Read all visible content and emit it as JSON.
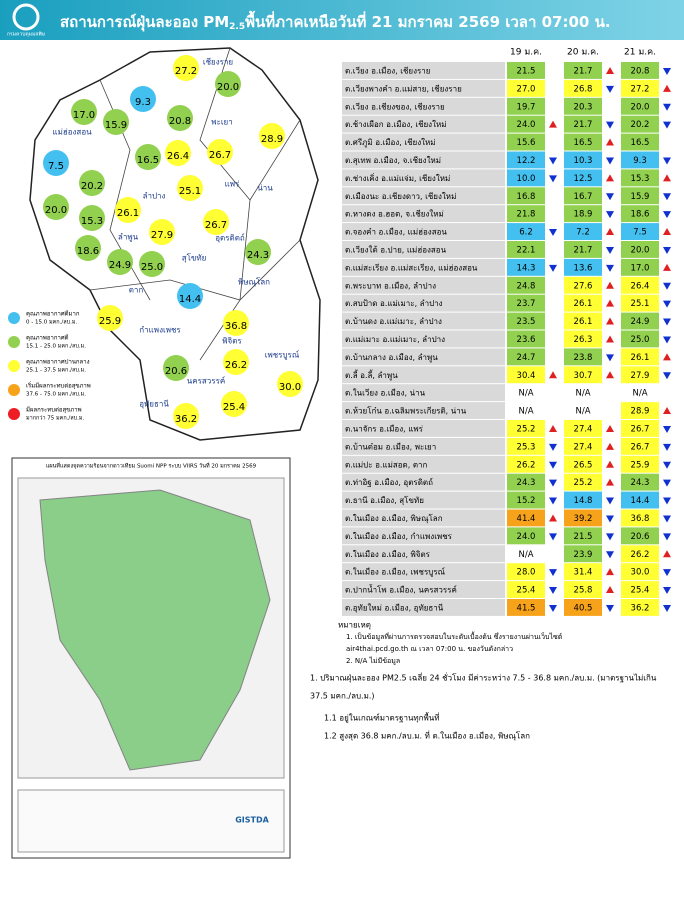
{
  "header": {
    "org": "กรมควบคุมมลพิษ",
    "title_a": "สถานการณ์ฝุ่นละออง PM",
    "title_sub": "2.5",
    "title_b": "พื้นที่ภาคเหนือวันที่ 21 มกราคม 2569 เวลา 07:00 น."
  },
  "legend": [
    {
      "label": "คุณภาพอากาศดีมาก",
      "range_label": "0 - 15.0 มคก./ลบ.ม.",
      "range": [
        0,
        15
      ],
      "color": "#43c0f0"
    },
    {
      "label": "คุณภาพอากาศดี",
      "range_label": "15.1 - 25.0 มคก./ลบ.ม.",
      "range": [
        15.1,
        25
      ],
      "color": "#92d050"
    },
    {
      "label": "คุณภาพอากาศปานกลาง",
      "range_label": "25.1 - 37.5 มคก./ลบ.ม.",
      "range": [
        25.1,
        37.5
      ],
      "color": "#ffff33"
    },
    {
      "label": "เริ่มมีผลกระทบต่อสุขภาพ",
      "range_label": "37.6 - 75.0 มคก./ลบ.ม.",
      "range": [
        37.6,
        75
      ],
      "color": "#f7a21b"
    },
    {
      "label": "มีผลกระทบต่อสุขภาพ",
      "range_label": "มากกว่า 75 มคก./ลบ.ม.",
      "range": [
        75,
        null
      ],
      "color": "#ee1c25"
    }
  ],
  "table": {
    "dates": [
      "19 ม.ค.",
      "20 ม.ค.",
      "21 ม.ค."
    ],
    "up_color": "#e02020",
    "down_color": "#1030d0",
    "rows": [
      {
        "station": "ต.เวียง อ.เมือง, เชียงราย",
        "values": [
          21.5,
          21.7,
          20.8
        ],
        "trends": [
          null,
          "up",
          "down"
        ]
      },
      {
        "station": "ต.เวียงพางคำ อ.แม่สาย, เชียงราย",
        "values": [
          27.0,
          26.8,
          27.2
        ],
        "trends": [
          null,
          "down",
          "up"
        ]
      },
      {
        "station": "ต.เวียง อ.เชียงของ, เชียงราย",
        "values": [
          19.7,
          20.3,
          20.0
        ],
        "trends": [
          null,
          null,
          "down"
        ]
      },
      {
        "station": "ต.ช้างเผือก อ.เมือง, เชียงใหม่",
        "values": [
          24.0,
          21.7,
          20.2
        ],
        "trends": [
          "up",
          "down",
          "down"
        ]
      },
      {
        "station": "ต.ศรีภูมิ อ.เมือง, เชียงใหม่",
        "values": [
          15.6,
          16.5,
          16.5
        ],
        "trends": [
          null,
          "up",
          null
        ]
      },
      {
        "station": "ต.สุเทพ อ.เมือง, จ.เชียงใหม่",
        "values": [
          12.2,
          10.3,
          9.3
        ],
        "trends": [
          "down",
          "down",
          "down"
        ]
      },
      {
        "station": "ต.ช่างเคิ่ง อ.แม่แจ่ม, เชียงใหม่",
        "values": [
          10.0,
          12.5,
          15.3
        ],
        "trends": [
          "down",
          "up",
          "up"
        ]
      },
      {
        "station": "ต.เมืองนะ อ.เชียงดาว, เชียงใหม่",
        "values": [
          16.8,
          16.7,
          15.9
        ],
        "trends": [
          null,
          "down",
          "down"
        ]
      },
      {
        "station": "ต.หางดง อ.ฮอด, จ.เชียงใหม่",
        "values": [
          21.8,
          18.9,
          18.6
        ],
        "trends": [
          null,
          "down",
          "down"
        ]
      },
      {
        "station": "ต.จองคำ อ.เมือง, แม่ฮ่องสอน",
        "values": [
          6.2,
          7.2,
          7.5
        ],
        "trends": [
          "down",
          "up",
          "up"
        ]
      },
      {
        "station": "ต.เวียงใต้ อ.ปาย, แม่ฮ่องสอน",
        "values": [
          22.1,
          21.7,
          20.0
        ],
        "trends": [
          null,
          "down",
          "down"
        ]
      },
      {
        "station": "ต.แม่สะเรียง อ.แม่สะเรียง, แม่ฮ่องสอน",
        "values": [
          14.3,
          13.6,
          17.0
        ],
        "trends": [
          "down",
          "down",
          "up"
        ]
      },
      {
        "station": "ต.พระบาท อ.เมือง, ลำปาง",
        "values": [
          24.8,
          27.6,
          26.4
        ],
        "trends": [
          null,
          "up",
          "down"
        ]
      },
      {
        "station": "ต.สบป้าด อ.แม่เมาะ, ลำปาง",
        "values": [
          23.7,
          26.1,
          25.1
        ],
        "trends": [
          null,
          "up",
          "down"
        ]
      },
      {
        "station": "ต.บ้านดง อ.แม่เมาะ, ลำปาง",
        "values": [
          23.5,
          26.1,
          24.9
        ],
        "trends": [
          null,
          "up",
          "down"
        ]
      },
      {
        "station": "ต.แม่เมาะ อ.แม่เมาะ, ลำปาง",
        "values": [
          23.6,
          26.3,
          25.0
        ],
        "trends": [
          null,
          "up",
          "down"
        ]
      },
      {
        "station": "ต.บ้านกลาง อ.เมือง, ลำพูน",
        "values": [
          24.7,
          23.8,
          26.1
        ],
        "trends": [
          null,
          "down",
          "up"
        ]
      },
      {
        "station": "ต.ลี้ อ.ลี้, ลำพูน",
        "values": [
          30.4,
          30.7,
          27.9
        ],
        "trends": [
          "up",
          "up",
          "down"
        ]
      },
      {
        "station": "ต.ในเวียง อ.เมือง, น่าน",
        "values": [
          "N/A",
          "N/A",
          "N/A"
        ],
        "trends": [
          null,
          null,
          null
        ]
      },
      {
        "station": "ต.ห้วยโก๋น อ.เฉลิมพระเกียรติ, น่าน",
        "values": [
          "N/A",
          "N/A",
          28.9
        ],
        "trends": [
          null,
          null,
          "up"
        ]
      },
      {
        "station": "ต.นาจักร อ.เมือง, แพร่",
        "values": [
          25.2,
          27.4,
          26.7
        ],
        "trends": [
          "up",
          "up",
          "down"
        ]
      },
      {
        "station": "ต.บ้านต๋อม อ.เมือง, พะเยา",
        "values": [
          25.3,
          27.4,
          26.7
        ],
        "trends": [
          "down",
          "up",
          "down"
        ]
      },
      {
        "station": "ต.แม่ปะ อ.แม่สอด, ตาก",
        "values": [
          26.2,
          26.5,
          25.9
        ],
        "trends": [
          "down",
          "up",
          "down"
        ]
      },
      {
        "station": "ต.ท่าอิฐ อ.เมือง, อุตรดิตถ์",
        "values": [
          24.3,
          25.2,
          24.3
        ],
        "trends": [
          "down",
          "up",
          "down"
        ]
      },
      {
        "station": "ต.ธานี อ.เมือง, สุโขทัย",
        "values": [
          15.2,
          14.8,
          14.4
        ],
        "trends": [
          "down",
          "down",
          "down"
        ]
      },
      {
        "station": "ต.ในเมือง อ.เมือง, พิษณุโลก",
        "values": [
          41.4,
          39.2,
          36.8
        ],
        "trends": [
          "up",
          "down",
          "down"
        ]
      },
      {
        "station": "ต.ในเมือง อ.เมือง, กำแพงเพชร",
        "values": [
          24.0,
          21.5,
          20.6
        ],
        "trends": [
          "down",
          "down",
          "down"
        ]
      },
      {
        "station": "ต.ในเมือง อ.เมือง, พิจิตร",
        "values": [
          "N/A",
          23.9,
          26.2
        ],
        "trends": [
          null,
          "down",
          "up"
        ]
      },
      {
        "station": "ต.ในเมือง อ.เมือง, เพชรบูรณ์",
        "values": [
          28.0,
          31.4,
          30.0
        ],
        "trends": [
          "down",
          "up",
          "down"
        ]
      },
      {
        "station": "ต.ปากน้ำโพ อ.เมือง, นครสวรรค์",
        "values": [
          25.4,
          25.8,
          25.4
        ],
        "trends": [
          "down",
          "up",
          "down"
        ]
      },
      {
        "station": "ต.อุทัยใหม่ อ.เมือง, อุทัยธานี",
        "values": [
          41.5,
          40.5,
          36.2
        ],
        "trends": [
          "down",
          "down",
          "down"
        ]
      }
    ]
  },
  "notes": [
    "หมายเหตุ",
    "1. เป็นข้อมูลที่ผ่านการตรวจสอบในระดับเบื้องต้น ซึ่งรายงานผ่านเว็บไซต์",
    "air4thai.pcd.go.th ณ เวลา 07:00 น. ของวันดังกล่าว",
    "2. N/A ไม่มีข้อมูล"
  ],
  "summary": [
    "1. ปริมาณฝุ่นละออง PM2.5 เฉลี่ย 24 ชั่วโมง มีค่าระหว่าง 7.5 - 36.8 มคก./ลบ.ม. (มาตรฐานไม่เกิน",
    "37.5 มคก./ลบ.ม.)",
    "1.1 อยู่ในเกณฑ์มาตรฐานทุกพื้นที่",
    "1.2 สูงสุด 36.8 มคก./ลบ.ม. ที่ ต.ในเมือง อ.เมือง, พิษณุโลก"
  ],
  "map": {
    "provinces": [
      "เชียงราย",
      "แม่ฮ่องสอน",
      "พะเยา",
      "น่าน",
      "แพร่",
      "ลำปาง",
      "ลำพูน",
      "ตาก",
      "สุโขทัย",
      "อุตรดิตถ์",
      "พิษณุโลก",
      "กำแพงเพชร",
      "พิจิตร",
      "เพชรบูรณ์",
      "นครสวรรค์",
      "อุทัยธานี"
    ],
    "bubbles": [
      27.2,
      20.0,
      9.3,
      17.0,
      15.9,
      20.8,
      28.9,
      16.5,
      26.4,
      26.7,
      7.5,
      20.2,
      25.1,
      20.0,
      15.3,
      26.1,
      26.7,
      18.6,
      24.9,
      27.9,
      25.0,
      24.3,
      14.4,
      25.9,
      36.8,
      20.6,
      26.2,
      30.0,
      25.4,
      36.2
    ]
  },
  "hotspot_map": {
    "title": "แผนที่แสดงจุดความร้อนจากดาวเทียม Suomi NPP ระบบ VIIRS วันที่ 20 มกราคม 2569",
    "brand": "GISTDA"
  }
}
